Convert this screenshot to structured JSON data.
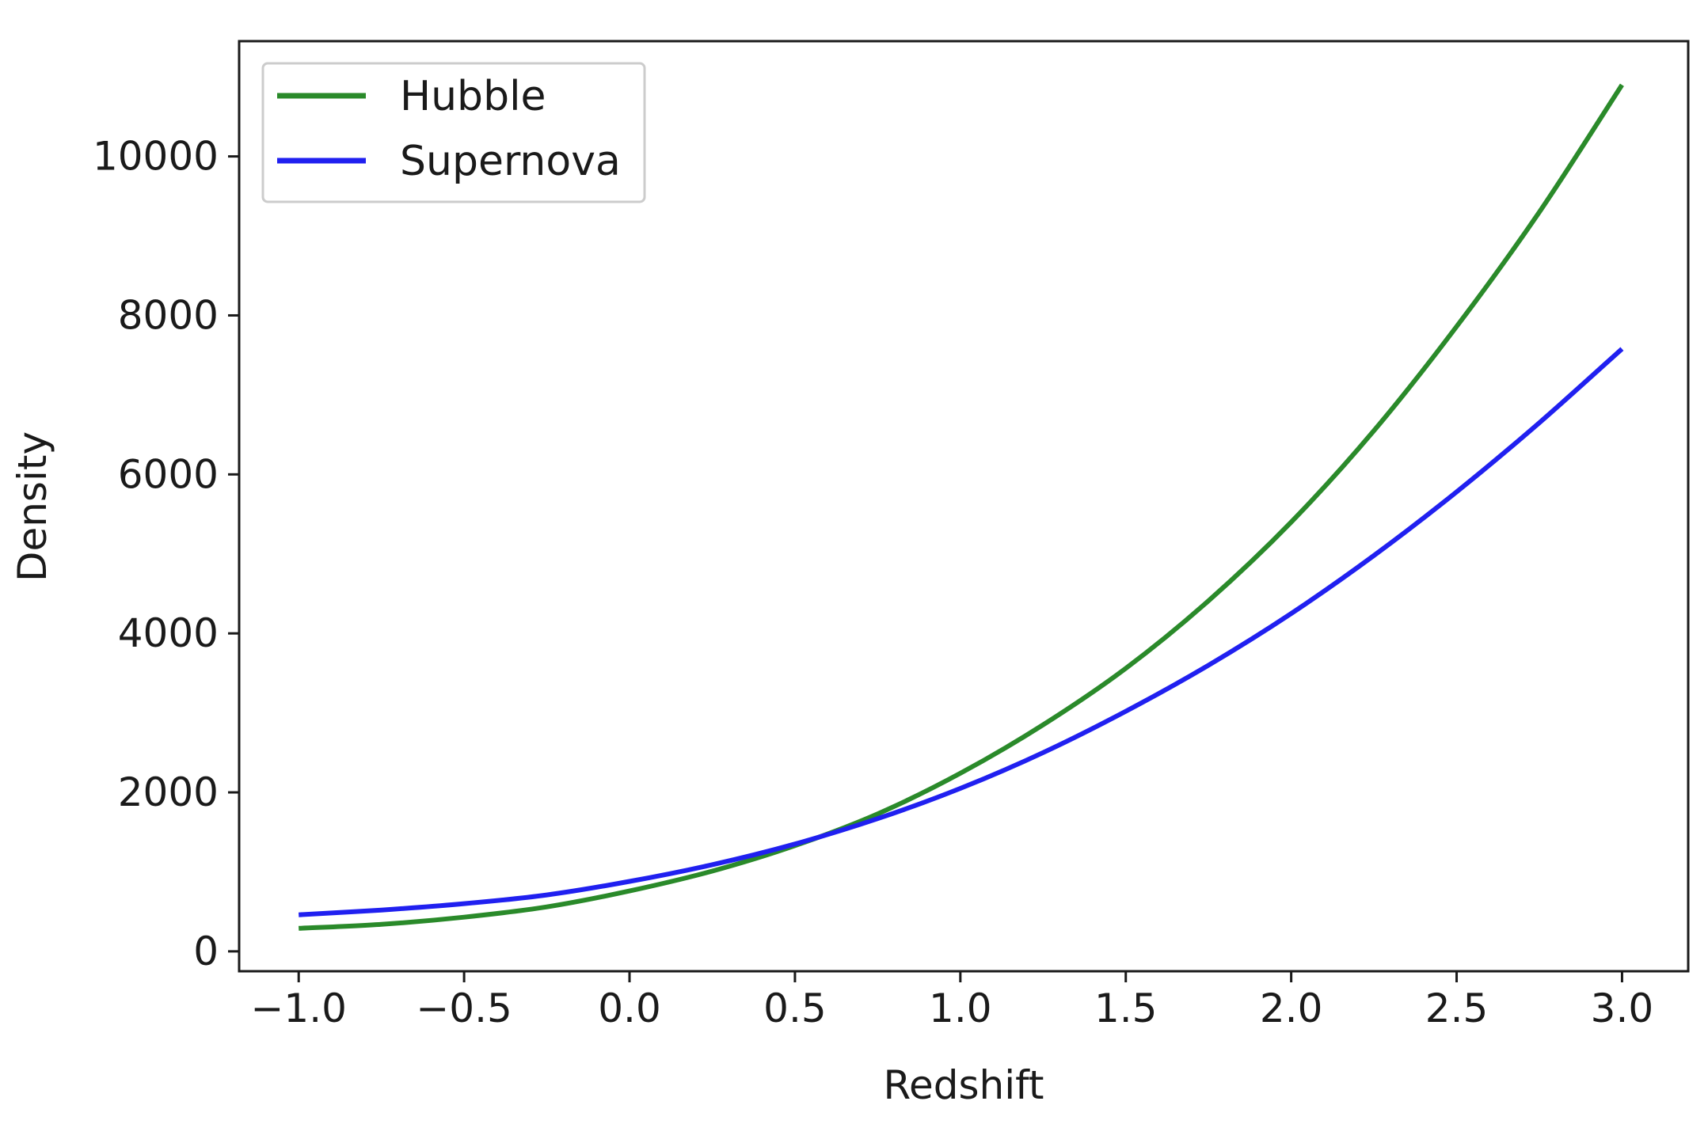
{
  "chart_data": {
    "type": "line",
    "title": "",
    "xlabel": "Redshift",
    "ylabel": "Density",
    "xlim": [
      -1.18,
      3.2
    ],
    "ylim": [
      -250,
      11450
    ],
    "xticks": [
      -1.0,
      -0.5,
      0.0,
      0.5,
      1.0,
      1.5,
      2.0,
      2.5,
      3.0
    ],
    "xtick_labels": [
      "−1.0",
      "−0.5",
      "0.0",
      "0.5",
      "1.0",
      "1.5",
      "2.0",
      "2.5",
      "3.0"
    ],
    "yticks": [
      0,
      2000,
      4000,
      6000,
      8000,
      10000
    ],
    "ytick_labels": [
      "0",
      "2000",
      "4000",
      "6000",
      "8000",
      "10000"
    ],
    "grid": false,
    "legend_position": "top-left",
    "x": [
      -1.0,
      -0.75,
      -0.5,
      -0.25,
      0.0,
      0.25,
      0.5,
      0.75,
      1.0,
      1.25,
      1.5,
      1.75,
      2.0,
      2.25,
      2.5,
      2.75,
      3.0
    ],
    "series": [
      {
        "name": "Hubble",
        "color": "#2a8a2a",
        "values": [
          290,
          340,
          430,
          560,
          760,
          1010,
          1330,
          1730,
          2240,
          2850,
          3560,
          4410,
          5400,
          6550,
          7860,
          9300,
          10900
        ]
      },
      {
        "name": "Supernova",
        "color": "#2020f0",
        "values": [
          460,
          520,
          600,
          710,
          880,
          1090,
          1350,
          1670,
          2050,
          2500,
          3020,
          3600,
          4250,
          4980,
          5780,
          6650,
          7580
        ]
      }
    ]
  }
}
